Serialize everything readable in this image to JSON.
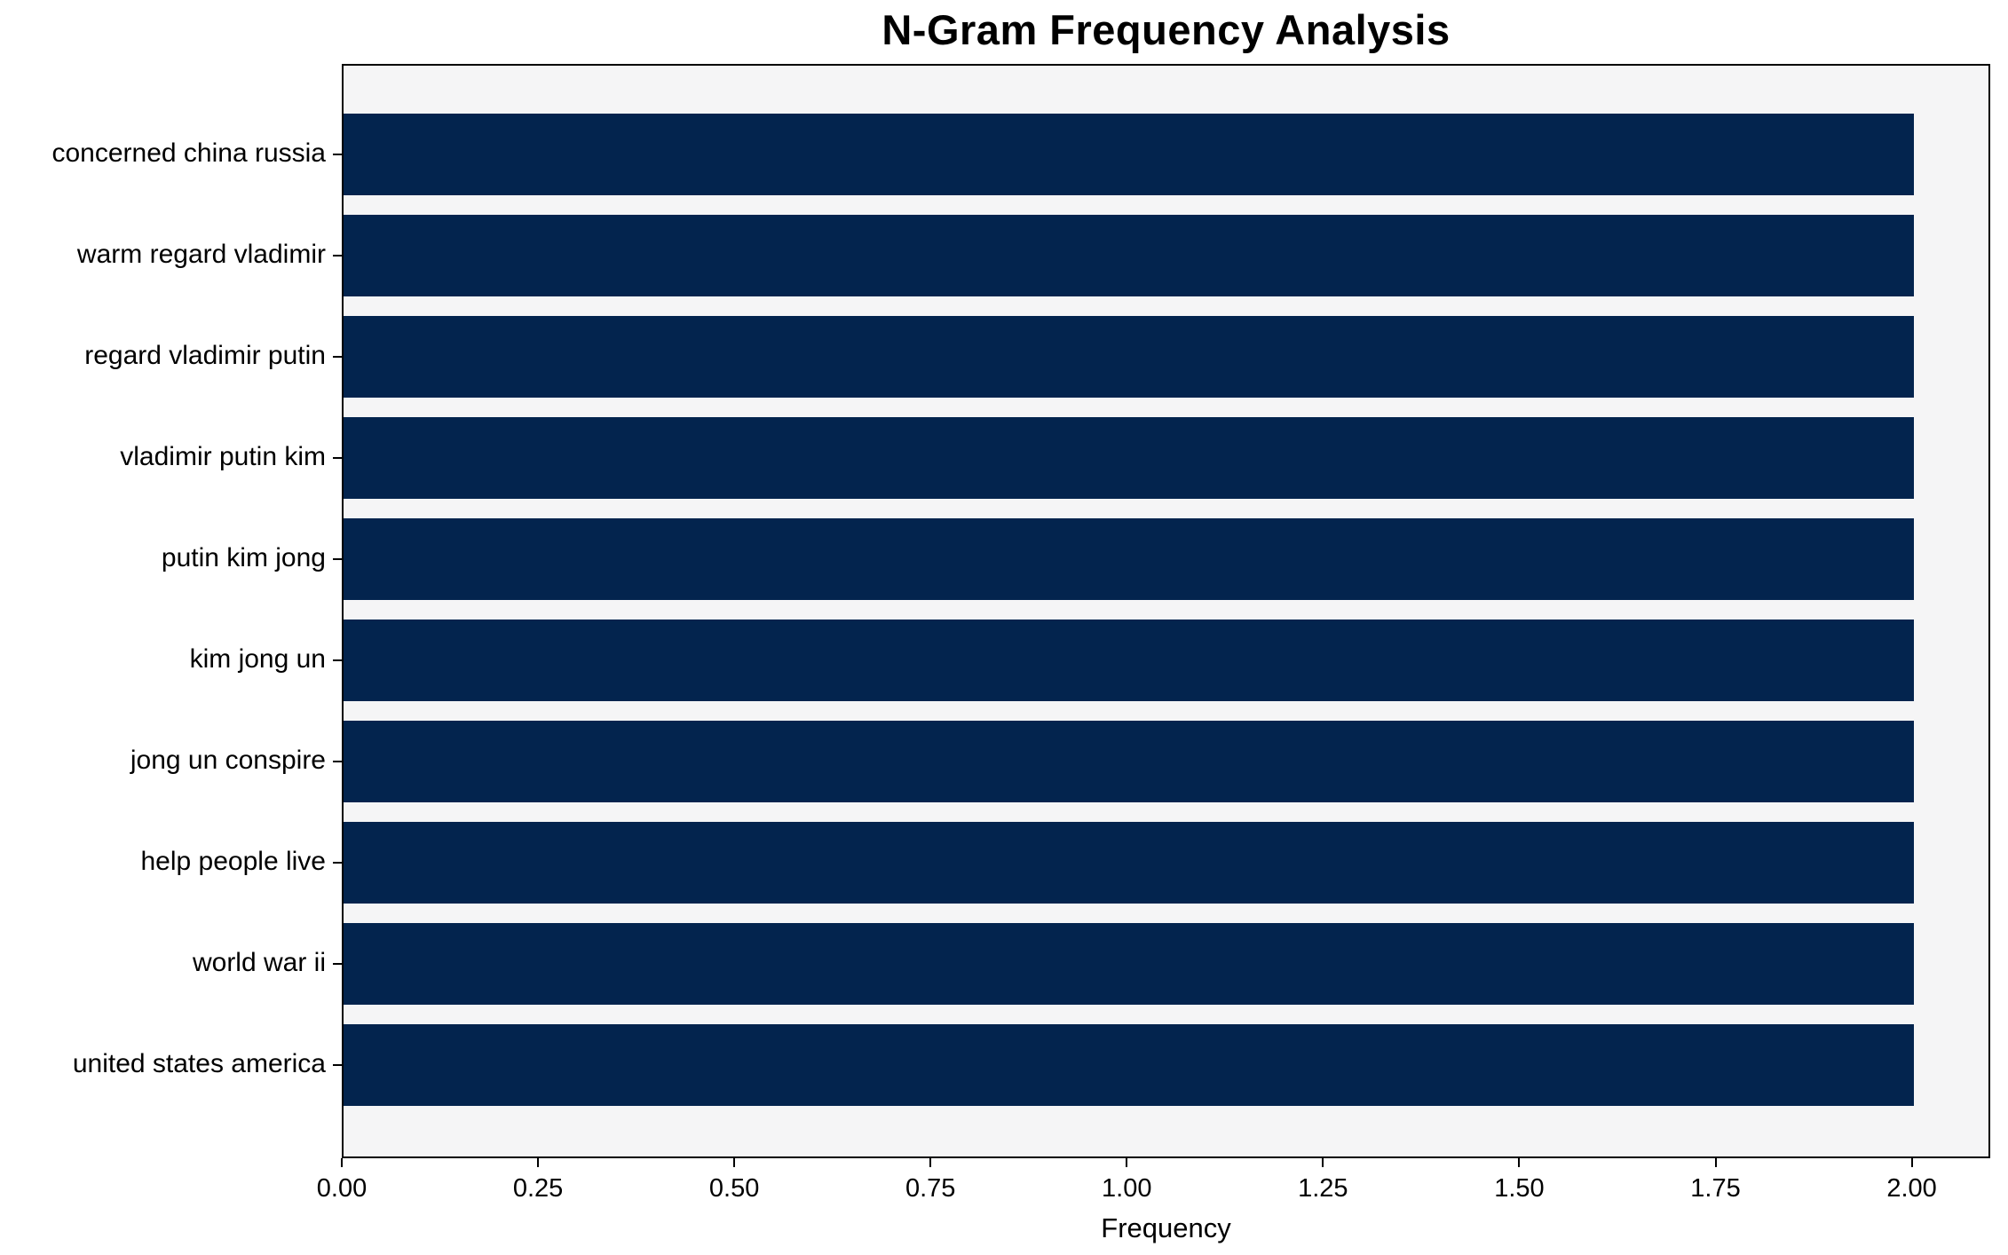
{
  "chart_data": {
    "type": "bar",
    "orientation": "horizontal",
    "title": "N-Gram Frequency Analysis",
    "xlabel": "Frequency",
    "ylabel": "",
    "categories": [
      "concerned china russia",
      "warm regard vladimir",
      "regard vladimir putin",
      "vladimir putin kim",
      "putin kim jong",
      "kim jong un",
      "jong un conspire",
      "help people live",
      "world war ii",
      "united states america"
    ],
    "values": [
      2,
      2,
      2,
      2,
      2,
      2,
      2,
      2,
      2,
      2
    ],
    "xlim": [
      0,
      2.1
    ],
    "xticks": [
      0.0,
      0.25,
      0.5,
      0.75,
      1.0,
      1.25,
      1.5,
      1.75,
      2.0
    ],
    "xtick_labels": [
      "0.00",
      "0.25",
      "0.50",
      "0.75",
      "1.00",
      "1.25",
      "1.50",
      "1.75",
      "2.00"
    ],
    "grid": false,
    "legend": null,
    "colors": {
      "bar": "#03244e",
      "plot_background": "#f5f5f6",
      "figure_background": "#ffffff",
      "axis": "#000000",
      "text": "#000000"
    }
  }
}
